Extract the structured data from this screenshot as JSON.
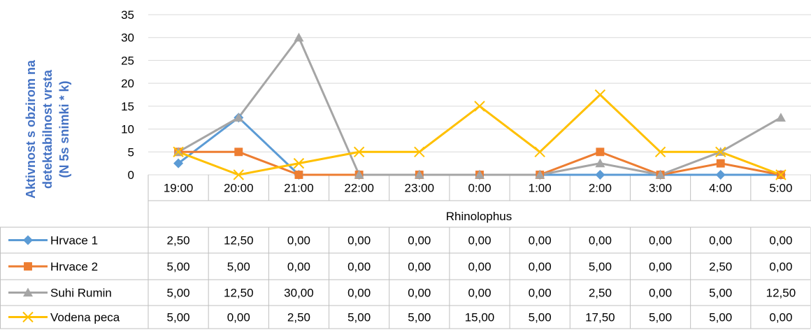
{
  "chart_data": {
    "type": "line",
    "title": "",
    "ylabel_lines": [
      "Aktivnost s obzirom na",
      "detektabilnost vrsta",
      "(N 5s snimki * k)"
    ],
    "xlabel": "Rhinolophus",
    "categories": [
      "19:00",
      "20:00",
      "21:00",
      "22:00",
      "23:00",
      "0:00",
      "1:00",
      "2:00",
      "3:00",
      "4:00",
      "5:00"
    ],
    "ylim": [
      0,
      35
    ],
    "yticks": [
      0,
      5,
      10,
      15,
      20,
      25,
      30,
      35
    ],
    "grid": true,
    "legend": "data-table",
    "series": [
      {
        "name": "Hrvace 1",
        "color": "#5B9BD5",
        "marker": "diamond",
        "values": [
          2.5,
          12.5,
          0,
          0,
          0,
          0,
          0,
          0,
          0,
          0,
          0
        ],
        "labels": [
          "2,50",
          "12,50",
          "0,00",
          "0,00",
          "0,00",
          "0,00",
          "0,00",
          "0,00",
          "0,00",
          "0,00",
          "0,00"
        ]
      },
      {
        "name": "Hrvace 2",
        "color": "#ED7D31",
        "marker": "square",
        "values": [
          5,
          5,
          0,
          0,
          0,
          0,
          0,
          5,
          0,
          2.5,
          0
        ],
        "labels": [
          "5,00",
          "5,00",
          "0,00",
          "0,00",
          "0,00",
          "0,00",
          "0,00",
          "5,00",
          "0,00",
          "2,50",
          "0,00"
        ]
      },
      {
        "name": "Suhi Rumin",
        "color": "#A5A5A5",
        "marker": "triangle",
        "values": [
          5,
          12.5,
          30,
          0,
          0,
          0,
          0,
          2.5,
          0,
          5,
          12.5
        ],
        "labels": [
          "5,00",
          "12,50",
          "30,00",
          "0,00",
          "0,00",
          "0,00",
          "0,00",
          "2,50",
          "0,00",
          "5,00",
          "12,50"
        ]
      },
      {
        "name": "Vodena peca",
        "color": "#FFC000",
        "marker": "x",
        "values": [
          5,
          0,
          2.5,
          5,
          5,
          15,
          5,
          17.5,
          5,
          5,
          0
        ],
        "labels": [
          "5,00",
          "0,00",
          "2,50",
          "5,00",
          "5,00",
          "15,00",
          "5,00",
          "17,50",
          "5,00",
          "5,00",
          "0,00"
        ]
      }
    ]
  }
}
